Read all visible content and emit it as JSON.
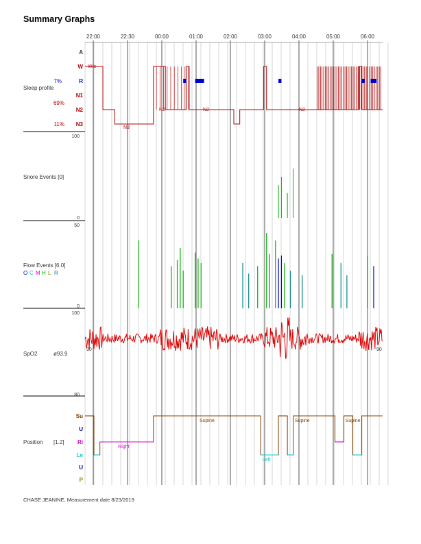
{
  "page": {
    "title": "Summary Graphs",
    "footer": "CHASE JEANINE, Measurement date 8/23/2019"
  },
  "colors": {
    "sleep": "#b00000",
    "rem": "#0000cc",
    "snore": "#00b000",
    "spo2": "#dd0000",
    "position": "#804000",
    "left": "#00cccc",
    "right": "#cc00cc",
    "grid": "#999999"
  },
  "chart_data": [
    {
      "type": "line",
      "panel": "sleep-profile",
      "time_ticks": [
        "22:00",
        "22:30",
        "00:00",
        "01:00",
        "02:00",
        "03:00",
        "04:00",
        "05:00",
        "06:00"
      ],
      "ylabel": "Sleep profile",
      "stages": [
        "A",
        "W",
        "R",
        "N1",
        "N2",
        "N3"
      ],
      "stage_percent": {
        "R": "7%",
        "N1": "69%",
        "N3": "11%"
      },
      "annotations": [
        "W/s",
        "N3",
        "N2",
        "N2",
        "N2"
      ],
      "segments": [
        {
          "stage": "W",
          "from": 0.0,
          "to": 0.06
        },
        {
          "stage": "N2",
          "from": 0.06,
          "to": 0.1
        },
        {
          "stage": "N3",
          "from": 0.1,
          "to": 0.23
        },
        {
          "stage": "W",
          "from": 0.23,
          "to": 0.27
        },
        {
          "stage": "N2",
          "from": 0.27,
          "to": 0.34
        },
        {
          "stage": "W",
          "from": 0.34,
          "to": 0.35
        },
        {
          "stage": "N2",
          "from": 0.35,
          "to": 0.5
        },
        {
          "stage": "N3",
          "from": 0.5,
          "to": 0.52
        },
        {
          "stage": "N2",
          "from": 0.52,
          "to": 0.6
        },
        {
          "stage": "W",
          "from": 0.6,
          "to": 0.61
        },
        {
          "stage": "N2",
          "from": 0.61,
          "to": 0.92
        },
        {
          "stage": "W",
          "from": 0.92,
          "to": 0.93
        },
        {
          "stage": "N2",
          "from": 0.93,
          "to": 1.0
        }
      ],
      "rem_blocks": [
        [
          0.33,
          0.34
        ],
        [
          0.37,
          0.4
        ],
        [
          0.65,
          0.66
        ],
        [
          0.93,
          0.94
        ],
        [
          0.96,
          0.98
        ]
      ]
    },
    {
      "type": "bar",
      "panel": "snore-events",
      "ylabel": "Snore Events [0]",
      "ylim": [
        0,
        100
      ],
      "events": [
        [
          0.65,
          40
        ],
        [
          0.66,
          50
        ],
        [
          0.7,
          60
        ],
        [
          0.68,
          30
        ]
      ]
    },
    {
      "type": "bar",
      "panel": "flow-events",
      "ylabel": "Flow Events [6.0]",
      "legend": [
        "O",
        "C",
        "M",
        "H",
        "L",
        "R"
      ],
      "legend_colors": [
        "#0000cc",
        "#00cccc",
        "#cc00cc",
        "#00b000",
        "#888800",
        "#008888"
      ],
      "ylim": [
        0,
        50
      ],
      "events": [
        {
          "x": 0.18,
          "v": 45,
          "c": "#00b000"
        },
        {
          "x": 0.29,
          "v": 28,
          "c": "#00b000"
        },
        {
          "x": 0.31,
          "v": 32,
          "c": "#00b000"
        },
        {
          "x": 0.32,
          "v": 40,
          "c": "#00b000"
        },
        {
          "x": 0.33,
          "v": 25,
          "c": "#00b000"
        },
        {
          "x": 0.37,
          "v": 37,
          "c": "#00b000"
        },
        {
          "x": 0.38,
          "v": 33,
          "c": "#00b000"
        },
        {
          "x": 0.39,
          "v": 30,
          "c": "#00b000"
        },
        {
          "x": 0.53,
          "v": 30,
          "c": "#008888"
        },
        {
          "x": 0.55,
          "v": 23,
          "c": "#008888"
        },
        {
          "x": 0.58,
          "v": 28,
          "c": "#00b000"
        },
        {
          "x": 0.61,
          "v": 50,
          "c": "#00b000"
        },
        {
          "x": 0.62,
          "v": 36,
          "c": "#008888"
        },
        {
          "x": 0.64,
          "v": 45,
          "c": "#00b000"
        },
        {
          "x": 0.65,
          "v": 33,
          "c": "#0000cc"
        },
        {
          "x": 0.66,
          "v": 35,
          "c": "#0000cc"
        },
        {
          "x": 0.67,
          "v": 30,
          "c": "#00b000"
        },
        {
          "x": 0.69,
          "v": 25,
          "c": "#008888"
        },
        {
          "x": 0.73,
          "v": 22,
          "c": "#008888"
        },
        {
          "x": 0.83,
          "v": 36,
          "c": "#00b000"
        },
        {
          "x": 0.86,
          "v": 30,
          "c": "#008888"
        },
        {
          "x": 0.88,
          "v": 22,
          "c": "#008888"
        },
        {
          "x": 0.95,
          "v": 35,
          "c": "#00b000"
        },
        {
          "x": 0.97,
          "v": 28,
          "c": "#0000cc"
        }
      ]
    },
    {
      "type": "line",
      "panel": "spo2",
      "ylabel": "SpO2",
      "stat": "ø93.9",
      "ylim": [
        80,
        100
      ],
      "ytick_top": "100",
      "ytick_bottom": "80",
      "mid_label_left": "90",
      "mid_label_right": "90",
      "baseline": 94
    },
    {
      "type": "line",
      "panel": "position",
      "ylabel": "Position",
      "stat": "[1.2]",
      "levels": [
        "Su",
        "U",
        "Ri",
        "Le",
        "U",
        "P"
      ],
      "level_colors": [
        "#804000",
        "#000080",
        "#cc00cc",
        "#00cccc",
        "#000080",
        "#888800"
      ],
      "annotations": [
        {
          "text": "Supine",
          "x": 0.41,
          "level": 0
        },
        {
          "text": "Right",
          "x": 0.13,
          "level": 2
        },
        {
          "text": "Left",
          "x": 0.61,
          "level": 3
        },
        {
          "text": "Supine",
          "x": 0.73,
          "level": 0
        },
        {
          "text": "Supine",
          "x": 0.9,
          "level": 0
        }
      ],
      "segments": [
        {
          "level": 0,
          "from": 0.0,
          "to": 0.03
        },
        {
          "level": 3,
          "from": 0.03,
          "to": 0.05
        },
        {
          "level": 2,
          "from": 0.05,
          "to": 0.23
        },
        {
          "level": 0,
          "from": 0.23,
          "to": 0.59
        },
        {
          "level": 3,
          "from": 0.59,
          "to": 0.65
        },
        {
          "level": 0,
          "from": 0.65,
          "to": 0.68
        },
        {
          "level": 3,
          "from": 0.68,
          "to": 0.7
        },
        {
          "level": 0,
          "from": 0.7,
          "to": 0.84
        },
        {
          "level": 2,
          "from": 0.84,
          "to": 0.87
        },
        {
          "level": 0,
          "from": 0.87,
          "to": 0.9
        },
        {
          "level": 3,
          "from": 0.9,
          "to": 0.93
        },
        {
          "level": 0,
          "from": 0.93,
          "to": 1.0
        }
      ]
    }
  ],
  "panel_labels": {
    "sleep_title": "Sleep profile",
    "snore_title": "Snore Events [0]",
    "snore_top": "100",
    "snore_bottom": "0",
    "flow_title": "Flow Events [6.0]",
    "flow_top": "50",
    "flow_bottom": "0",
    "spo2_title": "SpO2",
    "position_title": "Position"
  }
}
